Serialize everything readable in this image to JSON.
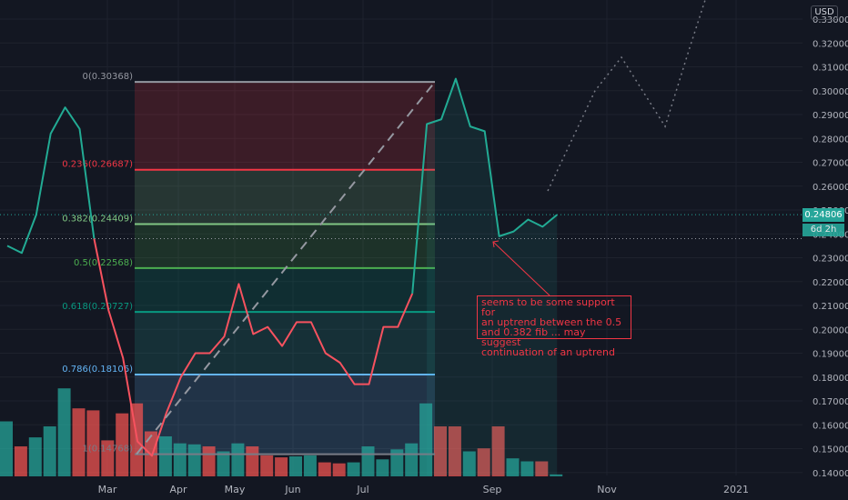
{
  "chart_data": {
    "type": "line",
    "currency": "USD",
    "price_label": "0.24806",
    "countdown_label": "6d 2h",
    "y_ticks": [
      "0.33000",
      "0.32000",
      "0.31000",
      "0.30000",
      "0.29000",
      "0.28000",
      "0.27000",
      "0.26000",
      "0.25000",
      "0.24000",
      "0.23000",
      "0.22000",
      "0.21000",
      "0.20000",
      "0.19000",
      "0.18000",
      "0.17000",
      "0.16000",
      "0.15000",
      "0.14000"
    ],
    "x_ticks": [
      "Mar",
      "Apr",
      "May",
      "Jun",
      "Jul",
      "Sep",
      "Nov",
      "2021"
    ],
    "ylim": [
      0.138,
      0.335
    ],
    "price_series": [
      {
        "i": 0,
        "v": 0.235
      },
      {
        "i": 1,
        "v": 0.232
      },
      {
        "i": 2,
        "v": 0.248
      },
      {
        "i": 3,
        "v": 0.282
      },
      {
        "i": 4,
        "v": 0.293
      },
      {
        "i": 5,
        "v": 0.284
      },
      {
        "i": 6,
        "v": 0.238
      },
      {
        "i": 7,
        "v": 0.208
      },
      {
        "i": 8,
        "v": 0.188
      },
      {
        "i": 9,
        "v": 0.153
      },
      {
        "i": 10,
        "v": 0.147
      },
      {
        "i": 11,
        "v": 0.165
      },
      {
        "i": 12,
        "v": 0.18
      },
      {
        "i": 13,
        "v": 0.19
      },
      {
        "i": 14,
        "v": 0.19
      },
      {
        "i": 15,
        "v": 0.197
      },
      {
        "i": 16,
        "v": 0.219
      },
      {
        "i": 17,
        "v": 0.198
      },
      {
        "i": 18,
        "v": 0.201
      },
      {
        "i": 19,
        "v": 0.193
      },
      {
        "i": 20,
        "v": 0.203
      },
      {
        "i": 21,
        "v": 0.203
      },
      {
        "i": 22,
        "v": 0.19
      },
      {
        "i": 23,
        "v": 0.186
      },
      {
        "i": 24,
        "v": 0.177
      },
      {
        "i": 25,
        "v": 0.177
      },
      {
        "i": 26,
        "v": 0.201
      },
      {
        "i": 27,
        "v": 0.201
      },
      {
        "i": 28,
        "v": 0.215
      },
      {
        "i": 29,
        "v": 0.286
      },
      {
        "i": 30,
        "v": 0.288
      },
      {
        "i": 31,
        "v": 0.305
      },
      {
        "i": 32,
        "v": 0.285
      },
      {
        "i": 33,
        "v": 0.283
      },
      {
        "i": 34,
        "v": 0.239
      },
      {
        "i": 35,
        "v": 0.241
      },
      {
        "i": 36,
        "v": 0.246
      },
      {
        "i": 37,
        "v": 0.243
      },
      {
        "i": 38,
        "v": 0.248
      }
    ],
    "volume": [
      {
        "v": 0.55,
        "up": true
      },
      {
        "v": 0.3,
        "up": false
      },
      {
        "v": 0.39,
        "up": true
      },
      {
        "v": 0.5,
        "up": true
      },
      {
        "v": 0.88,
        "up": true
      },
      {
        "v": 0.68,
        "up": false
      },
      {
        "v": 0.66,
        "up": false
      },
      {
        "v": 0.36,
        "up": false
      },
      {
        "v": 0.63,
        "up": false
      },
      {
        "v": 0.73,
        "up": false
      },
      {
        "v": 0.45,
        "up": false
      },
      {
        "v": 0.4,
        "up": true
      },
      {
        "v": 0.33,
        "up": true
      },
      {
        "v": 0.32,
        "up": true
      },
      {
        "v": 0.3,
        "up": false
      },
      {
        "v": 0.25,
        "up": true
      },
      {
        "v": 0.33,
        "up": true
      },
      {
        "v": 0.3,
        "up": false
      },
      {
        "v": 0.21,
        "up": false
      },
      {
        "v": 0.19,
        "up": false
      },
      {
        "v": 0.2,
        "up": true
      },
      {
        "v": 0.21,
        "up": true
      },
      {
        "v": 0.14,
        "up": false
      },
      {
        "v": 0.13,
        "up": false
      },
      {
        "v": 0.14,
        "up": true
      },
      {
        "v": 0.3,
        "up": true
      },
      {
        "v": 0.17,
        "up": true
      },
      {
        "v": 0.27,
        "up": true
      },
      {
        "v": 0.33,
        "up": true
      },
      {
        "v": 0.73,
        "up": true
      },
      {
        "v": 0.5,
        "up": false
      },
      {
        "v": 0.5,
        "up": false
      },
      {
        "v": 0.25,
        "up": true
      },
      {
        "v": 0.28,
        "up": false
      },
      {
        "v": 0.5,
        "up": false
      },
      {
        "v": 0.18,
        "up": true
      },
      {
        "v": 0.15,
        "up": true
      },
      {
        "v": 0.15,
        "up": false
      },
      {
        "v": 0.02,
        "up": true
      }
    ],
    "fib_levels": [
      {
        "label": "0(0.30368)",
        "ratio": 0,
        "price": 0.30368,
        "color": "#9598a1"
      },
      {
        "label": "0.236(0.26687)",
        "ratio": 0.236,
        "price": 0.26687,
        "color": "#f23645"
      },
      {
        "label": "0.382(0.24409)",
        "ratio": 0.382,
        "price": 0.24409,
        "color": "#81c784"
      },
      {
        "label": "0.5(0.22568)",
        "ratio": 0.5,
        "price": 0.22568,
        "color": "#4caf50"
      },
      {
        "label": "0.618(0.20727)",
        "ratio": 0.618,
        "price": 0.20727,
        "color": "#089981"
      },
      {
        "label": "0.786(0.18106)",
        "ratio": 0.786,
        "price": 0.18106,
        "color": "#64b5f6"
      },
      {
        "label": "1(0.14768)",
        "ratio": 1,
        "price": 0.14768,
        "color": "#787b86"
      }
    ],
    "projection": [
      0.258,
      0.279,
      0.3,
      0.314,
      0.285,
      0.318,
      0.338
    ],
    "annotation": "seems to be some support for\nan uptrend between the 0.5\nand 0.382 fib ... may suggest\ncontinuation of an uptrend",
    "colors": {
      "up": "#26a69a",
      "down": "#ef5350",
      "background": "#131722",
      "grid": "#1e222d",
      "trend": "#787b86"
    },
    "grid": true
  }
}
